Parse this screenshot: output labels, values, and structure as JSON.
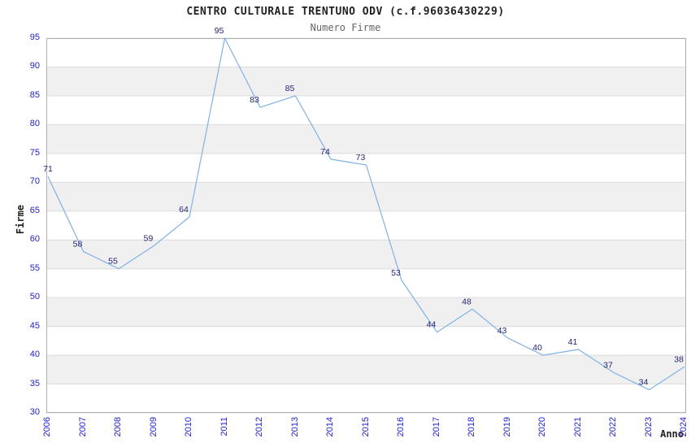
{
  "header": {
    "title": "CENTRO CULTURALE TRENTUNO ODV (c.f.96036430229)",
    "subtitle": "Numero Firme"
  },
  "axes": {
    "x_label": "Anno",
    "y_label": "Firme"
  },
  "chart_data": {
    "type": "line",
    "title": "CENTRO CULTURALE TRENTUNO ODV (c.f.96036430229)",
    "subtitle": "Numero Firme",
    "xlabel": "Anno",
    "ylabel": "Firme",
    "categories": [
      "2006",
      "2007",
      "2008",
      "2009",
      "2010",
      "2011",
      "2012",
      "2013",
      "2014",
      "2015",
      "2016",
      "2017",
      "2018",
      "2019",
      "2020",
      "2021",
      "2022",
      "2023",
      "2024"
    ],
    "values": [
      71,
      58,
      55,
      59,
      64,
      95,
      83,
      85,
      74,
      73,
      53,
      44,
      48,
      43,
      40,
      41,
      37,
      34,
      38
    ],
    "ylim": [
      30,
      95
    ],
    "ytick_step": 5,
    "yticks": [
      30,
      35,
      40,
      45,
      50,
      55,
      60,
      65,
      70,
      75,
      80,
      85,
      90,
      95
    ],
    "grid": "horizontal-bands",
    "legend": "none",
    "point_labels": true,
    "colors": {
      "line": "#7fb2e5",
      "tick_label": "#2222cc",
      "point_label": "#252575",
      "title": "#222222",
      "subtitle": "#666666",
      "band": "#f0f0f0",
      "gridline": "#dcdcdc",
      "border": "#b0b0b0",
      "background": "#ffffff"
    }
  }
}
